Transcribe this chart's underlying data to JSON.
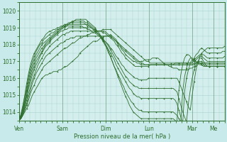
{
  "bg_color": "#c8eaea",
  "plot_bg_color": "#d4eeed",
  "line_color": "#2d6e2d",
  "grid_color": "#a8d4d0",
  "xlabel": "Pression niveau de la mer( hPa )",
  "ylim": [
    1013.5,
    1020.5
  ],
  "xlim": [
    0,
    114
  ],
  "yticks": [
    1014,
    1015,
    1016,
    1017,
    1018,
    1019,
    1020
  ],
  "x_ticks_pos": [
    0,
    24,
    48,
    72,
    96,
    108
  ],
  "x_ticks_labels": [
    "Ven",
    "Sam",
    "Dim",
    "Lun",
    "Mar",
    "Me"
  ],
  "series": [
    [
      1013.5,
      1013.6,
      1013.8,
      1014.0,
      1014.2,
      1014.4,
      1014.7,
      1015.0,
      1015.2,
      1015.4,
      1015.6,
      1015.8,
      1016.0,
      1016.1,
      1016.2,
      1016.2,
      1016.3,
      1016.3,
      1016.4,
      1016.4,
      1016.4,
      1016.5,
      1016.5,
      1016.6,
      1016.7,
      1016.7,
      1016.8,
      1016.9,
      1017.0,
      1017.1,
      1017.2,
      1017.3,
      1017.5,
      1017.6,
      1017.7,
      1017.8,
      1017.9,
      1018.0,
      1018.1,
      1018.2,
      1018.2,
      1018.2,
      1018.3,
      1018.4,
      1018.4,
      1018.5,
      1018.5,
      1018.5,
      1018.6,
      1018.5,
      1018.4,
      1018.3,
      1018.1,
      1018.0,
      1017.8,
      1017.7,
      1017.6,
      1017.5,
      1017.4,
      1017.3,
      1017.2,
      1017.1,
      1017.0,
      1017.0,
      1017.0,
      1017.0,
      1017.1,
      1017.1,
      1017.1,
      1017.1,
      1017.2,
      1017.2,
      1017.2,
      1017.2,
      1017.1,
      1017.0,
      1016.9,
      1016.8,
      1016.8,
      1016.7,
      1016.7,
      1016.6,
      1016.6,
      1016.6,
      1016.5,
      1016.5,
      1016.5,
      1016.5,
      1016.5,
      1016.5,
      1016.6,
      1016.6,
      1016.7,
      1016.7,
      1016.8,
      1017.3,
      1017.5,
      1017.6,
      1017.7,
      1017.8,
      1017.8,
      1017.8,
      1017.8,
      1017.8,
      1017.8,
      1017.8,
      1017.8,
      1017.8,
      1017.9
    ],
    [
      1013.5,
      1013.6,
      1013.8,
      1014.1,
      1014.4,
      1014.7,
      1015.1,
      1015.4,
      1015.6,
      1015.9,
      1016.1,
      1016.3,
      1016.5,
      1016.7,
      1016.8,
      1016.9,
      1017.0,
      1017.1,
      1017.2,
      1017.3,
      1017.4,
      1017.5,
      1017.6,
      1017.7,
      1017.8,
      1017.8,
      1017.9,
      1018.0,
      1018.1,
      1018.1,
      1018.2,
      1018.3,
      1018.4,
      1018.4,
      1018.5,
      1018.5,
      1018.6,
      1018.6,
      1018.7,
      1018.7,
      1018.8,
      1018.8,
      1018.8,
      1018.8,
      1018.9,
      1018.9,
      1018.9,
      1018.9,
      1018.9,
      1018.8,
      1018.7,
      1018.6,
      1018.5,
      1018.4,
      1018.3,
      1018.2,
      1018.1,
      1018.0,
      1017.9,
      1017.8,
      1017.7,
      1017.6,
      1017.5,
      1017.4,
      1017.3,
      1017.2,
      1017.1,
      1017.0,
      1017.0,
      1016.9,
      1016.9,
      1016.9,
      1016.9,
      1016.9,
      1016.9,
      1016.9,
      1016.9,
      1016.9,
      1016.9,
      1016.9,
      1016.9,
      1016.9,
      1016.9,
      1016.9,
      1016.9,
      1016.9,
      1016.9,
      1016.9,
      1016.9,
      1016.9,
      1016.9,
      1016.9,
      1017.2,
      1017.4,
      1017.5,
      1017.7,
      1017.8,
      1017.7,
      1017.6,
      1017.5,
      1017.5,
      1017.5,
      1017.5,
      1017.5,
      1017.5,
      1017.5,
      1017.5,
      1017.6,
      1017.6
    ],
    [
      1013.5,
      1013.7,
      1013.9,
      1014.2,
      1014.5,
      1014.9,
      1015.3,
      1015.7,
      1016.0,
      1016.3,
      1016.5,
      1016.7,
      1016.9,
      1017.1,
      1017.3,
      1017.4,
      1017.5,
      1017.6,
      1017.7,
      1017.8,
      1017.9,
      1018.0,
      1018.1,
      1018.1,
      1018.2,
      1018.3,
      1018.3,
      1018.4,
      1018.4,
      1018.4,
      1018.5,
      1018.5,
      1018.5,
      1018.5,
      1018.5,
      1018.5,
      1018.5,
      1018.5,
      1018.5,
      1018.5,
      1018.5,
      1018.5,
      1018.5,
      1018.5,
      1018.5,
      1018.5,
      1018.5,
      1018.5,
      1018.5,
      1018.4,
      1018.3,
      1018.2,
      1018.1,
      1018.0,
      1017.9,
      1017.8,
      1017.7,
      1017.6,
      1017.5,
      1017.4,
      1017.3,
      1017.2,
      1017.1,
      1017.0,
      1016.9,
      1016.9,
      1016.8,
      1016.8,
      1016.8,
      1016.8,
      1016.8,
      1016.8,
      1016.8,
      1016.8,
      1016.8,
      1016.8,
      1016.8,
      1016.8,
      1016.8,
      1016.8,
      1016.8,
      1016.8,
      1016.9,
      1016.9,
      1016.9,
      1016.9,
      1016.9,
      1016.9,
      1016.9,
      1016.9,
      1016.9,
      1016.9,
      1017.1,
      1017.2,
      1017.3,
      1017.4,
      1017.4,
      1017.4,
      1017.3,
      1017.2,
      1017.2,
      1017.2,
      1017.2,
      1017.2,
      1017.2,
      1017.2,
      1017.2,
      1017.2,
      1017.3
    ],
    [
      1013.5,
      1013.6,
      1013.9,
      1014.3,
      1014.7,
      1015.1,
      1015.5,
      1015.9,
      1016.2,
      1016.5,
      1016.8,
      1017.0,
      1017.2,
      1017.4,
      1017.6,
      1017.7,
      1017.9,
      1018.0,
      1018.1,
      1018.2,
      1018.3,
      1018.4,
      1018.5,
      1018.6,
      1018.6,
      1018.7,
      1018.7,
      1018.8,
      1018.8,
      1018.8,
      1018.8,
      1018.8,
      1018.8,
      1018.8,
      1018.8,
      1018.8,
      1018.8,
      1018.8,
      1018.8,
      1018.8,
      1018.8,
      1018.8,
      1018.8,
      1018.8,
      1018.8,
      1018.8,
      1018.7,
      1018.6,
      1018.5,
      1018.4,
      1018.3,
      1018.2,
      1018.0,
      1017.9,
      1017.7,
      1017.6,
      1017.4,
      1017.3,
      1017.2,
      1017.1,
      1017.0,
      1017.0,
      1016.9,
      1016.9,
      1016.8,
      1016.8,
      1016.8,
      1016.8,
      1016.8,
      1016.8,
      1016.8,
      1016.8,
      1016.8,
      1016.8,
      1016.8,
      1016.8,
      1016.8,
      1016.8,
      1016.8,
      1016.8,
      1016.8,
      1016.8,
      1016.8,
      1016.8,
      1016.8,
      1016.8,
      1016.8,
      1016.8,
      1016.8,
      1016.8,
      1016.8,
      1016.8,
      1016.9,
      1017.1,
      1017.2,
      1017.3,
      1017.3,
      1017.2,
      1017.1,
      1017.0,
      1017.0,
      1017.0,
      1017.0,
      1017.0,
      1017.0,
      1017.0,
      1017.0,
      1017.0,
      1017.0
    ],
    [
      1013.5,
      1013.7,
      1014.0,
      1014.4,
      1014.9,
      1015.4,
      1015.8,
      1016.2,
      1016.5,
      1016.8,
      1017.0,
      1017.3,
      1017.5,
      1017.7,
      1017.9,
      1018.0,
      1018.1,
      1018.3,
      1018.4,
      1018.5,
      1018.6,
      1018.7,
      1018.8,
      1018.8,
      1018.9,
      1018.9,
      1019.0,
      1019.0,
      1019.0,
      1019.0,
      1019.0,
      1019.0,
      1019.0,
      1019.0,
      1019.0,
      1019.0,
      1019.0,
      1019.0,
      1019.0,
      1018.9,
      1018.9,
      1018.8,
      1018.8,
      1018.8,
      1018.7,
      1018.7,
      1018.6,
      1018.5,
      1018.4,
      1018.3,
      1018.2,
      1018.0,
      1017.9,
      1017.7,
      1017.5,
      1017.4,
      1017.2,
      1017.1,
      1017.0,
      1016.9,
      1016.8,
      1016.7,
      1016.7,
      1016.7,
      1016.7,
      1016.7,
      1016.7,
      1016.7,
      1016.7,
      1016.8,
      1016.8,
      1016.8,
      1016.8,
      1016.8,
      1016.8,
      1016.8,
      1016.8,
      1016.8,
      1016.8,
      1016.8,
      1016.8,
      1016.8,
      1016.8,
      1016.8,
      1016.8,
      1016.8,
      1016.8,
      1016.8,
      1016.8,
      1016.8,
      1016.8,
      1016.8,
      1016.8,
      1016.9,
      1017.0,
      1017.0,
      1017.0,
      1016.8,
      1016.7,
      1016.7,
      1016.7,
      1016.7,
      1016.7,
      1016.7,
      1016.7,
      1016.7,
      1016.7,
      1016.7,
      1016.7
    ],
    [
      1013.5,
      1013.7,
      1014.0,
      1014.5,
      1015.0,
      1015.5,
      1016.0,
      1016.4,
      1016.7,
      1017.0,
      1017.2,
      1017.4,
      1017.6,
      1017.8,
      1018.0,
      1018.1,
      1018.2,
      1018.4,
      1018.5,
      1018.6,
      1018.7,
      1018.8,
      1018.9,
      1019.0,
      1019.0,
      1019.1,
      1019.1,
      1019.1,
      1019.1,
      1019.1,
      1019.1,
      1019.1,
      1019.1,
      1019.1,
      1019.0,
      1019.0,
      1018.9,
      1018.9,
      1018.8,
      1018.7,
      1018.7,
      1018.6,
      1018.5,
      1018.4,
      1018.3,
      1018.2,
      1018.1,
      1018.0,
      1017.8,
      1017.7,
      1017.5,
      1017.3,
      1017.2,
      1017.0,
      1016.8,
      1016.7,
      1016.5,
      1016.4,
      1016.3,
      1016.2,
      1016.1,
      1016.0,
      1016.0,
      1015.9,
      1015.9,
      1015.9,
      1015.9,
      1015.9,
      1016.0,
      1016.0,
      1016.0,
      1016.0,
      1016.0,
      1016.0,
      1016.0,
      1016.0,
      1016.0,
      1016.0,
      1016.0,
      1016.0,
      1016.0,
      1016.0,
      1016.0,
      1016.0,
      1015.8,
      1015.5,
      1015.2,
      1014.9,
      1014.6,
      1014.3,
      1014.1,
      1015.0,
      1015.8,
      1016.5,
      1017.0,
      1017.2,
      1017.2,
      1017.0,
      1016.8,
      1016.7,
      1016.7,
      1016.7,
      1016.7,
      1016.7,
      1016.7,
      1016.7,
      1016.7,
      1016.7,
      1016.7
    ],
    [
      1013.5,
      1013.7,
      1014.1,
      1014.6,
      1015.2,
      1015.7,
      1016.2,
      1016.6,
      1016.9,
      1017.2,
      1017.4,
      1017.6,
      1017.8,
      1017.9,
      1018.1,
      1018.2,
      1018.3,
      1018.4,
      1018.5,
      1018.6,
      1018.7,
      1018.8,
      1018.9,
      1019.0,
      1019.1,
      1019.1,
      1019.2,
      1019.2,
      1019.2,
      1019.2,
      1019.2,
      1019.2,
      1019.2,
      1019.2,
      1019.2,
      1019.2,
      1019.1,
      1019.1,
      1019.0,
      1018.9,
      1018.8,
      1018.7,
      1018.6,
      1018.5,
      1018.4,
      1018.2,
      1018.1,
      1017.9,
      1017.7,
      1017.5,
      1017.3,
      1017.1,
      1016.9,
      1016.7,
      1016.5,
      1016.3,
      1016.1,
      1016.0,
      1015.8,
      1015.7,
      1015.6,
      1015.5,
      1015.5,
      1015.4,
      1015.4,
      1015.4,
      1015.4,
      1015.4,
      1015.4,
      1015.4,
      1015.4,
      1015.4,
      1015.4,
      1015.4,
      1015.4,
      1015.4,
      1015.4,
      1015.4,
      1015.4,
      1015.4,
      1015.4,
      1015.4,
      1015.3,
      1015.2,
      1014.8,
      1014.4,
      1014.0,
      1013.7,
      1013.4,
      1014.5,
      1015.3,
      1016.0,
      1016.5,
      1016.8,
      1017.0,
      1016.9,
      1016.8,
      1016.7,
      1016.7,
      1016.7,
      1016.7,
      1016.7,
      1016.7,
      1016.7,
      1016.7,
      1016.7,
      1016.7,
      1016.7,
      1016.7
    ],
    [
      1013.5,
      1013.8,
      1014.2,
      1014.7,
      1015.3,
      1015.9,
      1016.4,
      1016.8,
      1017.1,
      1017.4,
      1017.6,
      1017.8,
      1018.0,
      1018.1,
      1018.2,
      1018.3,
      1018.4,
      1018.5,
      1018.6,
      1018.7,
      1018.8,
      1018.9,
      1019.0,
      1019.1,
      1019.1,
      1019.2,
      1019.2,
      1019.3,
      1019.3,
      1019.3,
      1019.3,
      1019.3,
      1019.3,
      1019.3,
      1019.3,
      1019.2,
      1019.2,
      1019.1,
      1019.0,
      1018.9,
      1018.8,
      1018.7,
      1018.6,
      1018.5,
      1018.3,
      1018.1,
      1017.9,
      1017.7,
      1017.5,
      1017.3,
      1017.1,
      1016.8,
      1016.6,
      1016.4,
      1016.2,
      1016.0,
      1015.8,
      1015.6,
      1015.4,
      1015.3,
      1015.1,
      1015.0,
      1014.9,
      1014.9,
      1014.8,
      1014.8,
      1014.8,
      1014.8,
      1014.8,
      1014.8,
      1014.8,
      1014.8,
      1014.8,
      1014.8,
      1014.8,
      1014.8,
      1014.8,
      1014.8,
      1014.8,
      1014.8,
      1014.8,
      1014.8,
      1014.7,
      1014.5,
      1014.1,
      1013.7,
      1013.3,
      1015.2,
      1016.0,
      1016.5,
      1016.9,
      1017.1,
      1017.1,
      1017.0,
      1016.9,
      1016.8,
      1016.8,
      1016.8,
      1016.8,
      1016.8,
      1016.8,
      1016.8,
      1016.8,
      1016.8,
      1016.8,
      1016.8,
      1016.8,
      1016.8,
      1016.8
    ],
    [
      1013.5,
      1013.8,
      1014.3,
      1014.9,
      1015.5,
      1016.1,
      1016.6,
      1017.0,
      1017.3,
      1017.6,
      1017.8,
      1018.0,
      1018.1,
      1018.3,
      1018.4,
      1018.5,
      1018.6,
      1018.7,
      1018.7,
      1018.8,
      1018.9,
      1018.9,
      1019.0,
      1019.1,
      1019.1,
      1019.2,
      1019.2,
      1019.3,
      1019.3,
      1019.4,
      1019.4,
      1019.4,
      1019.4,
      1019.4,
      1019.4,
      1019.3,
      1019.3,
      1019.2,
      1019.1,
      1019.0,
      1018.9,
      1018.7,
      1018.6,
      1018.4,
      1018.2,
      1018.0,
      1017.8,
      1017.5,
      1017.3,
      1017.0,
      1016.7,
      1016.5,
      1016.2,
      1016.0,
      1015.7,
      1015.5,
      1015.2,
      1015.0,
      1014.8,
      1014.6,
      1014.5,
      1014.3,
      1014.2,
      1014.1,
      1014.1,
      1014.0,
      1014.0,
      1014.0,
      1014.0,
      1014.0,
      1014.0,
      1014.0,
      1014.0,
      1014.0,
      1014.0,
      1014.0,
      1014.0,
      1014.0,
      1014.0,
      1014.0,
      1014.0,
      1014.0,
      1013.9,
      1013.8,
      1013.6,
      1013.4,
      1015.2,
      1016.1,
      1016.6,
      1017.0,
      1017.2,
      1017.2,
      1017.1,
      1017.0,
      1016.9,
      1016.9,
      1016.9,
      1016.9,
      1016.9,
      1016.9,
      1016.9,
      1016.9,
      1016.9,
      1016.9,
      1016.9,
      1016.9,
      1016.9,
      1016.9,
      1016.9
    ],
    [
      1013.5,
      1013.9,
      1014.4,
      1015.0,
      1015.7,
      1016.3,
      1016.8,
      1017.2,
      1017.5,
      1017.7,
      1017.9,
      1018.1,
      1018.3,
      1018.4,
      1018.6,
      1018.7,
      1018.8,
      1018.8,
      1018.9,
      1018.9,
      1019.0,
      1019.0,
      1019.1,
      1019.1,
      1019.2,
      1019.2,
      1019.3,
      1019.3,
      1019.4,
      1019.4,
      1019.5,
      1019.5,
      1019.5,
      1019.5,
      1019.5,
      1019.5,
      1019.4,
      1019.3,
      1019.2,
      1019.1,
      1019.0,
      1018.8,
      1018.7,
      1018.5,
      1018.3,
      1018.1,
      1017.9,
      1017.6,
      1017.3,
      1017.0,
      1016.7,
      1016.4,
      1016.1,
      1015.8,
      1015.5,
      1015.2,
      1014.9,
      1014.7,
      1014.4,
      1014.2,
      1014.0,
      1013.9,
      1013.8,
      1013.7,
      1013.6,
      1013.6,
      1013.6,
      1013.6,
      1013.6,
      1013.6,
      1013.6,
      1013.6,
      1013.6,
      1013.6,
      1013.6,
      1013.6,
      1013.6,
      1013.6,
      1013.6,
      1013.6,
      1013.6,
      1013.6,
      1013.5,
      1013.4,
      1015.3,
      1016.2,
      1016.8,
      1017.2,
      1017.4,
      1017.4,
      1017.3,
      1017.1,
      1017.0,
      1016.9,
      1016.9,
      1016.9,
      1016.9,
      1016.9,
      1016.9,
      1016.9,
      1016.9,
      1016.9,
      1016.9,
      1016.9,
      1016.9,
      1016.9,
      1016.9,
      1016.9,
      1016.9
    ]
  ]
}
